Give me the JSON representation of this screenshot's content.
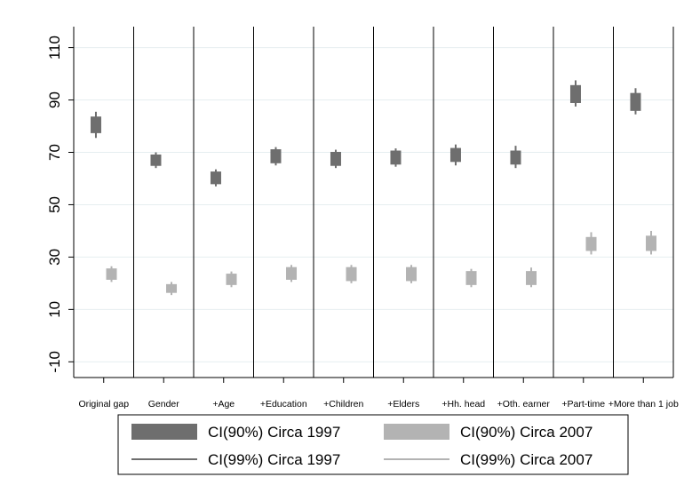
{
  "chart_data": {
    "type": "candlestick",
    "title": "",
    "xlabel": "",
    "ylabel": "",
    "ylim": [
      -16,
      118
    ],
    "yticks": [
      -10,
      10,
      30,
      50,
      70,
      90,
      110
    ],
    "ytick_labels": [
      "-10",
      "10",
      "30",
      "50",
      "70",
      "90",
      "110"
    ],
    "grid": true,
    "categories": [
      "Original gap",
      "Gender",
      "+Age",
      "+Education",
      "+Children",
      "+Elders",
      "+Hh. head",
      "+Oth. earner",
      "+Part-time",
      "+More than 1 job"
    ],
    "series": [
      {
        "name": "Circa 1997",
        "color": "#6e6e6e",
        "ci90": [
          [
            77.5,
            83.5
          ],
          [
            65,
            69
          ],
          [
            58,
            62.5
          ],
          [
            66,
            71
          ],
          [
            65,
            70
          ],
          [
            65.5,
            70.5
          ],
          [
            66.5,
            71.5
          ],
          [
            65.5,
            70.5
          ],
          [
            89,
            95.5
          ],
          [
            86,
            92.5
          ]
        ],
        "ci99": [
          [
            75.5,
            85.5
          ],
          [
            64,
            70
          ],
          [
            57,
            63.5
          ],
          [
            65,
            72
          ],
          [
            64,
            71
          ],
          [
            64.5,
            71.5
          ],
          [
            65,
            73
          ],
          [
            64,
            72.5
          ],
          [
            87.5,
            97.5
          ],
          [
            84.5,
            94.5
          ]
        ]
      },
      {
        "name": "Circa 2007",
        "color": "#b3b3b3",
        "ci90": [
          [
            21.5,
            25.5
          ],
          [
            16.5,
            19.5
          ],
          [
            19.5,
            23.5
          ],
          [
            21.5,
            26
          ],
          [
            21,
            26
          ],
          [
            21,
            26
          ],
          [
            19.5,
            24.5
          ],
          [
            19.5,
            24.5
          ],
          [
            32.5,
            37.5
          ],
          [
            32.5,
            38
          ]
        ],
        "ci99": [
          [
            20.5,
            26.5
          ],
          [
            15.5,
            20.5
          ],
          [
            18.5,
            24.5
          ],
          [
            20.5,
            27
          ],
          [
            20,
            27
          ],
          [
            20,
            27
          ],
          [
            18.5,
            25.5
          ],
          [
            18.5,
            26
          ],
          [
            31,
            39.5
          ],
          [
            31,
            40
          ]
        ]
      }
    ],
    "legend": {
      "placement": "bottom",
      "entries": [
        "CI(90%) Circa 1997",
        "CI(90%) Circa 2007",
        "CI(99%) Circa 1997",
        "CI(99%) Circa 2007"
      ]
    }
  }
}
